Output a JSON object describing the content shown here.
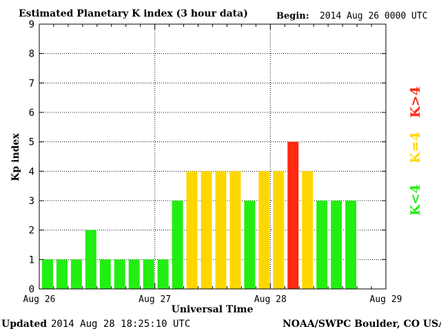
{
  "chart_data": {
    "type": "bar",
    "title": "Estimated Planetary K index (3 hour data)",
    "begin_label": "Begin:",
    "begin_value": "2014 Aug 26 0000 UTC",
    "ylabel": "Kp index",
    "xlabel": "Universal Time",
    "ylim": [
      0,
      9
    ],
    "yticks": [
      "0",
      "1",
      "2",
      "3",
      "4",
      "5",
      "6",
      "7",
      "8",
      "9"
    ],
    "xticks": [
      "Aug 26",
      "Aug 27",
      "Aug 28",
      "Aug 29"
    ],
    "x_range_days": 3,
    "bars_per_day": 8,
    "values": [
      1,
      1,
      1,
      2,
      1,
      1,
      1,
      1,
      1,
      3,
      4,
      4,
      4,
      4,
      3,
      4,
      4,
      5,
      4,
      3,
      3,
      3
    ],
    "grid": true,
    "colors": {
      "below4": "#22ee11",
      "equal4": "#ffd700",
      "above4": "#ff2a10"
    },
    "legend": {
      "below": "K<4",
      "equal": "K=4",
      "above": "K>4"
    },
    "updated_label": "Updated",
    "updated_value": "2014 Aug 28 18:25:10 UTC",
    "source": "NOAA/SWPC Boulder, CO USA"
  }
}
